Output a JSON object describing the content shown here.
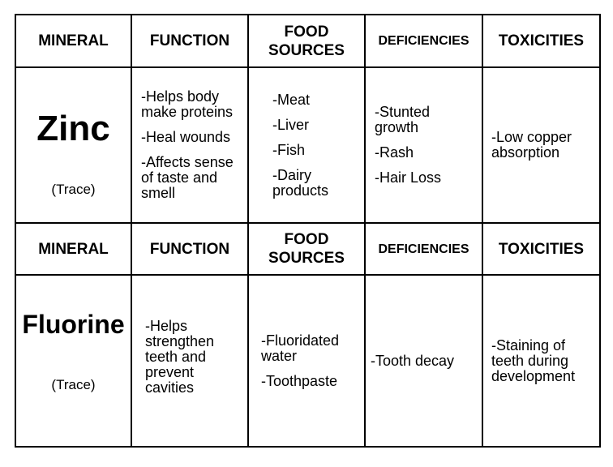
{
  "headers": {
    "mineral": "MINERAL",
    "function": "FUNCTION",
    "food_sources_line1": "FOOD",
    "food_sources_line2": "SOURCES",
    "deficiencies": "DEFICIENCIES",
    "toxicities": "TOXICITIES"
  },
  "rows": [
    {
      "mineral": "Zinc",
      "type": "(Trace)",
      "functions": [
        "-Helps body make proteins",
        "-Heal wounds",
        "-Affects sense of taste and smell"
      ],
      "food_sources": [
        "-Meat",
        "-Liver",
        "-Fish",
        "-Dairy products"
      ],
      "deficiencies": [
        "-Stunted growth",
        "-Rash",
        "-Hair Loss"
      ],
      "toxicities": [
        "-Low copper absorption"
      ]
    },
    {
      "mineral": "Fluorine",
      "type": "(Trace)",
      "functions": [
        "-Helps strengthen teeth and prevent cavities"
      ],
      "food_sources": [
        "-Fluoridated water",
        "-Toothpaste"
      ],
      "deficiencies": [
        "-Tooth decay"
      ],
      "toxicities": [
        "-Staining of teeth during development"
      ]
    }
  ]
}
